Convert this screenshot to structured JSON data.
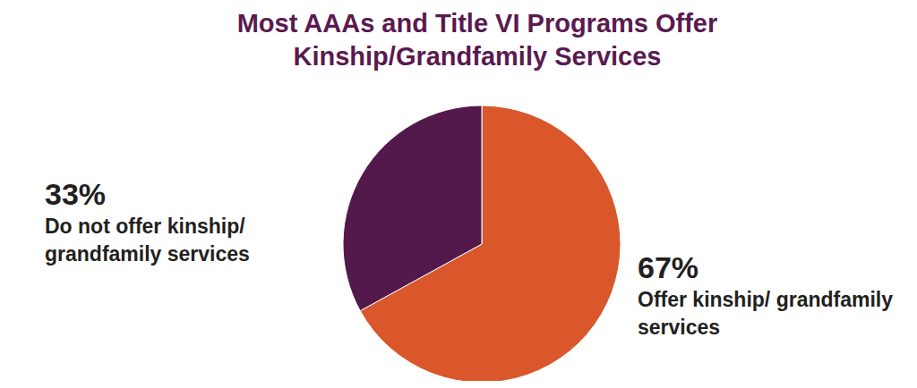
{
  "chart_data": {
    "type": "pie",
    "title": "Most AAAs and Title VI Programs Offer Kinship/Grandfamily Services",
    "categories": [
      "Offer kinship/ grandfamily services",
      "Do not offer kinship/ grandfamily services"
    ],
    "values": [
      67,
      33
    ],
    "value_labels": [
      "67%",
      "33%"
    ],
    "colors": [
      "#d9572b",
      "#54194b"
    ],
    "data_labels": true
  }
}
